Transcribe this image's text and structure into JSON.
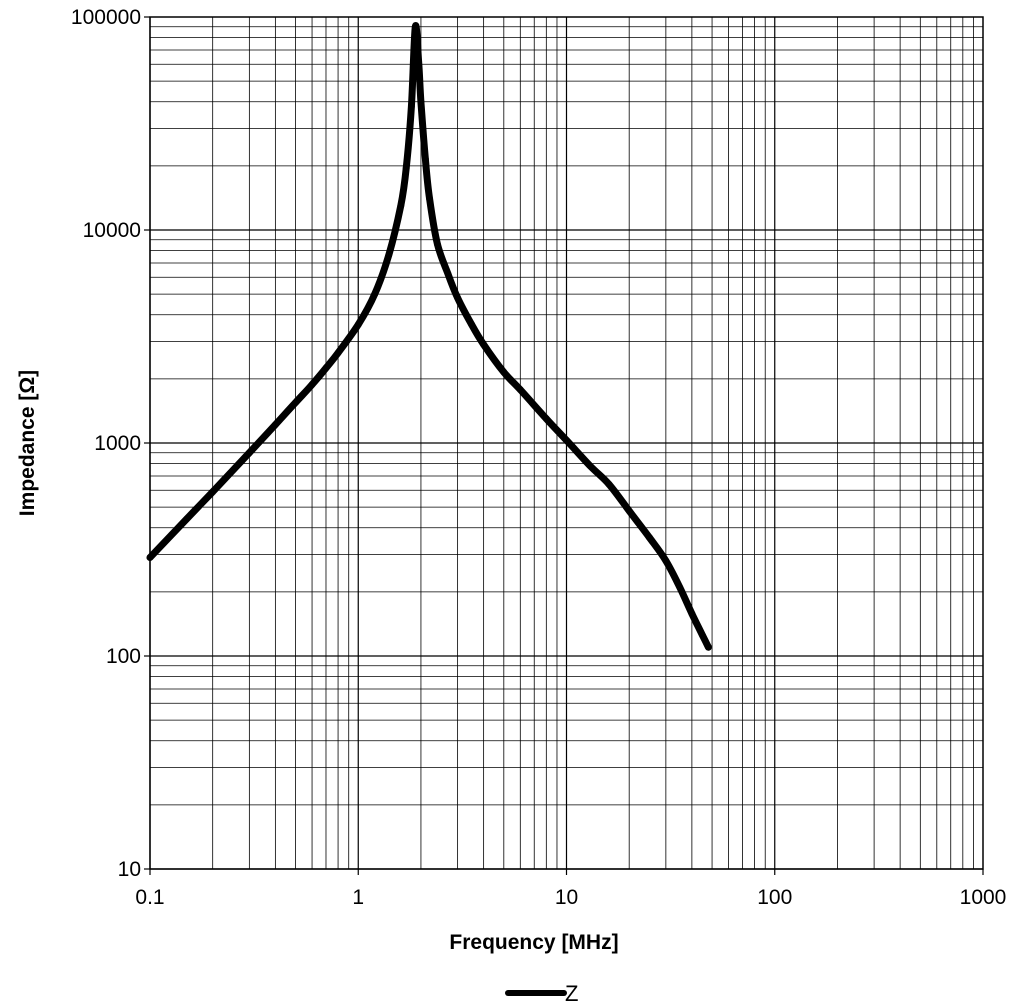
{
  "chart_data": {
    "type": "line",
    "xlabel": "Frequency [MHz]",
    "ylabel": "Impedance [Ω]",
    "xscale": "log",
    "yscale": "log",
    "xlim": [
      0.1,
      1000
    ],
    "ylim": [
      10,
      100000
    ],
    "grid": true,
    "legend": "bottom-center",
    "x_ticks": [
      {
        "value": 0.1,
        "label": "0.1"
      },
      {
        "value": 1,
        "label": "1"
      },
      {
        "value": 10,
        "label": "10"
      },
      {
        "value": 100,
        "label": "100"
      },
      {
        "value": 1000,
        "label": "1000"
      }
    ],
    "y_ticks": [
      {
        "value": 10,
        "label": "10"
      },
      {
        "value": 100,
        "label": "100"
      },
      {
        "value": 1000,
        "label": "1000"
      },
      {
        "value": 10000,
        "label": "10000"
      },
      {
        "value": 100000,
        "label": "100000"
      }
    ],
    "series": [
      {
        "name": "Z",
        "color": "#000000",
        "x": [
          0.1,
          0.15,
          0.2,
          0.3,
          0.4,
          0.5,
          0.6,
          0.7,
          0.8,
          1.0,
          1.2,
          1.4,
          1.6,
          1.7,
          1.8,
          1.88,
          1.95,
          2.0,
          2.1,
          2.2,
          2.4,
          2.7,
          3.0,
          3.5,
          4.0,
          5.0,
          6.0,
          8.0,
          10.0,
          13.0,
          16.0,
          20.0,
          25.0,
          30.0,
          35.0,
          40.0,
          45.0,
          48.0
        ],
        "y": [
          290,
          440,
          590,
          900,
          1220,
          1550,
          1880,
          2250,
          2650,
          3600,
          5000,
          7600,
          13000,
          19500,
          38000,
          90000,
          62000,
          40000,
          21500,
          14000,
          8600,
          6200,
          4800,
          3600,
          2900,
          2150,
          1780,
          1300,
          1030,
          780,
          640,
          480,
          360,
          280,
          210,
          158,
          125,
          110
        ]
      }
    ]
  }
}
